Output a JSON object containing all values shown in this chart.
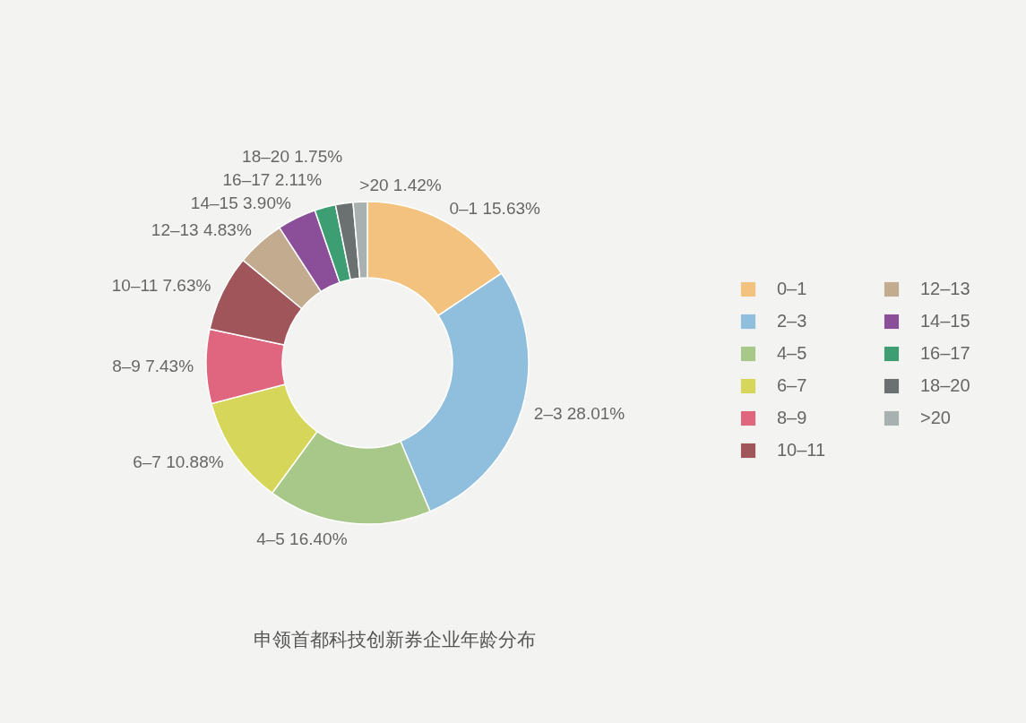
{
  "chart_data": {
    "type": "donut",
    "title": "申领首都科技创新券企业年龄分布",
    "categories": [
      "0–1",
      "2–3",
      "4–5",
      "6–7",
      "8–9",
      "10–11",
      "12–13",
      "14–15",
      "16–17",
      "18–20",
      ">20"
    ],
    "values": [
      15.63,
      28.01,
      16.4,
      10.88,
      7.43,
      7.63,
      4.83,
      3.9,
      2.11,
      1.75,
      1.42
    ],
    "value_labels": [
      "15.63%",
      "28.01%",
      "16.40%",
      "10.88%",
      "7.43%",
      "7.63%",
      "4.83%",
      "3.90%",
      "2.11%",
      "1.75%",
      "1.42%"
    ],
    "colors": [
      "#f2c27e",
      "#8fbfdc",
      "#a8c88a",
      "#d6d65a",
      "#e0657e",
      "#a0555a",
      "#c2ab8e",
      "#8a4f98",
      "#3e9e73",
      "#6b7070",
      "#a8b0b0"
    ],
    "legend": "right"
  }
}
